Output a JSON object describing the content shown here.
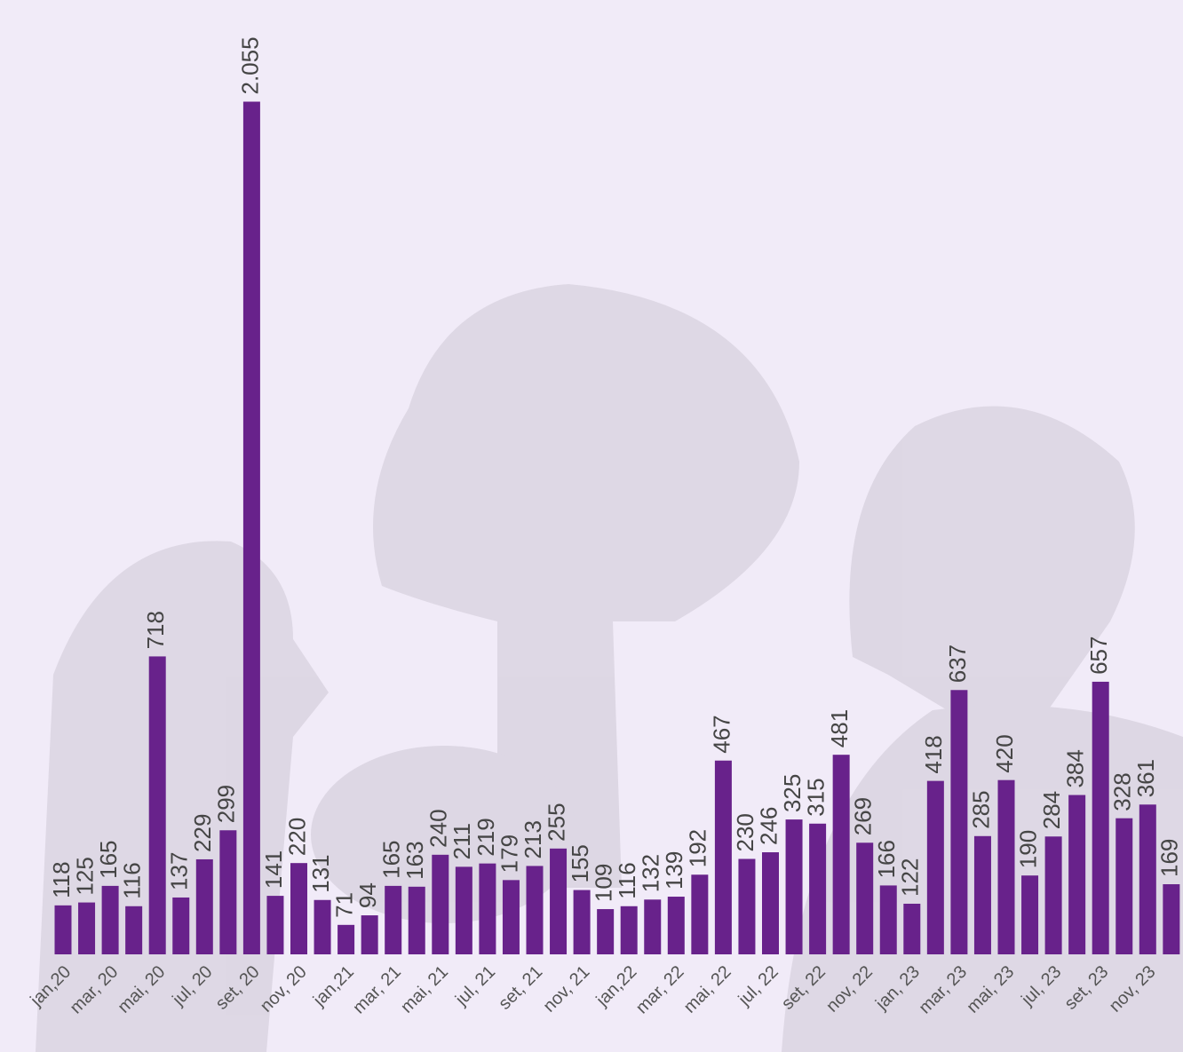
{
  "chart_data": {
    "type": "bar",
    "categories": [
      "jan,20",
      null,
      "mar, 20",
      null,
      "mai, 20",
      null,
      "jul, 20",
      null,
      "set, 20",
      null,
      "nov, 20",
      null,
      "jan,21",
      null,
      "mar, 21",
      null,
      "mai, 21",
      null,
      "jul, 21",
      null,
      "set, 21",
      null,
      "nov, 21",
      null,
      "jan,22",
      null,
      "mar, 22",
      null,
      "mai, 22",
      null,
      "jul, 22",
      null,
      "set, 22",
      null,
      "nov, 22",
      null,
      "jan, 23",
      null,
      "mar, 23",
      null,
      "mai, 23",
      null,
      "jul, 23",
      null,
      "set, 23",
      null,
      "nov, 23",
      null
    ],
    "values": [
      118,
      125,
      165,
      116,
      718,
      137,
      229,
      299,
      2055,
      141,
      220,
      131,
      71,
      94,
      165,
      163,
      240,
      211,
      219,
      179,
      213,
      255,
      155,
      109,
      116,
      132,
      139,
      192,
      467,
      230,
      246,
      325,
      315,
      481,
      269,
      166,
      122,
      418,
      637,
      285,
      420,
      190,
      284,
      384,
      657,
      328,
      361,
      169
    ],
    "value_labels": [
      "118",
      "125",
      "165",
      "116",
      "718",
      "137",
      "229",
      "299",
      "2.055",
      "141",
      "220",
      "131",
      "71",
      "94",
      "165",
      "163",
      "240",
      "211",
      "219",
      "179",
      "213",
      "255",
      "155",
      "109",
      "116",
      "132",
      "139",
      "192",
      "467",
      "230",
      "246",
      "325",
      "315",
      "481",
      "269",
      "166",
      "122",
      "418",
      "637",
      "285",
      "420",
      "190",
      "284",
      "384",
      "657",
      "328",
      "361",
      "169"
    ],
    "color": "#68228b",
    "ylim": [
      0,
      2300
    ]
  }
}
